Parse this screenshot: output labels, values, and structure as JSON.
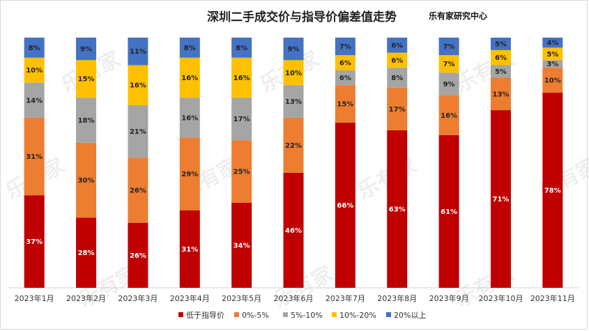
{
  "chart_data": {
    "type": "bar",
    "stacked": true,
    "title": "深圳二手成交价与指导价偏差值走势",
    "source": "乐有家研究中心",
    "categories": [
      "2023年1月",
      "2023年2月",
      "2023年3月",
      "2023年4月",
      "2023年5月",
      "2023年6月",
      "2023年7月",
      "2023年8月",
      "2023年9月",
      "2023年10月",
      "2023年11月"
    ],
    "series": [
      {
        "name": "低于指导价",
        "color": "#c00000",
        "values": [
          37,
          28,
          26,
          31,
          34,
          46,
          66,
          63,
          61,
          71,
          78
        ]
      },
      {
        "name": "0%-5%",
        "color": "#ed7d31",
        "values": [
          31,
          30,
          26,
          29,
          25,
          22,
          15,
          17,
          16,
          13,
          10
        ]
      },
      {
        "name": "5%-10%",
        "color": "#a5a5a5",
        "values": [
          14,
          18,
          21,
          16,
          17,
          13,
          6,
          8,
          9,
          5,
          3
        ]
      },
      {
        "name": "10%-20%",
        "color": "#ffc000",
        "values": [
          10,
          15,
          16,
          16,
          16,
          10,
          6,
          6,
          7,
          6,
          5
        ]
      },
      {
        "name": "20%以上",
        "color": "#4472c4",
        "values": [
          8,
          9,
          11,
          8,
          8,
          9,
          7,
          6,
          7,
          5,
          4
        ]
      }
    ],
    "value_suffix": "%",
    "legend_position": "bottom",
    "grid": false
  },
  "watermark_text": "乐有家"
}
